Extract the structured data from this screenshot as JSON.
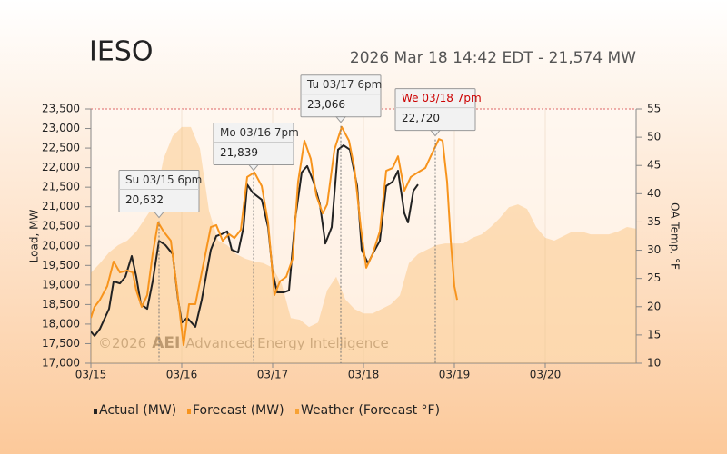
{
  "chart_data": {
    "type": "line",
    "title": "IESO",
    "subtitle": "2026 Mar 18 14:42 EDT - 21,574 MW",
    "ylabel": "Load, MW",
    "y2label": "OA Temp, °F",
    "watermark": {
      "copyright": "©2026",
      "logo": "AEI",
      "name": "Advanced Energy Intelligence"
    },
    "xlim": [
      0,
      6
    ],
    "xticks": [
      {
        "value": 0,
        "label": "03/15"
      },
      {
        "value": 1,
        "label": "03/16"
      },
      {
        "value": 2,
        "label": "03/17"
      },
      {
        "value": 3,
        "label": "03/18"
      },
      {
        "value": 4,
        "label": "03/19"
      },
      {
        "value": 5,
        "label": "03/20"
      }
    ],
    "ylim": [
      17000,
      23500
    ],
    "yticks": [
      {
        "value": 17000,
        "label": "17,000"
      },
      {
        "value": 17500,
        "label": "17,500"
      },
      {
        "value": 18000,
        "label": "18,000"
      },
      {
        "value": 18500,
        "label": "18,500"
      },
      {
        "value": 19000,
        "label": "19,000"
      },
      {
        "value": 19500,
        "label": "19,500"
      },
      {
        "value": 20000,
        "label": "20,000"
      },
      {
        "value": 20500,
        "label": "20,500"
      },
      {
        "value": 21000,
        "label": "21,000"
      },
      {
        "value": 21500,
        "label": "21,500"
      },
      {
        "value": 22000,
        "label": "22,000"
      },
      {
        "value": 22500,
        "label": "22,500"
      },
      {
        "value": 23000,
        "label": "23,000"
      },
      {
        "value": 23500,
        "label": "23,500"
      }
    ],
    "y2lim": [
      10,
      55
    ],
    "y2ticks": [
      10,
      15,
      20,
      25,
      30,
      35,
      40,
      45,
      50,
      55
    ],
    "series": [
      {
        "name": "Weather (Forecast °F)",
        "color": "#f7a234",
        "axis": "y2",
        "style": "area",
        "x": [
          0,
          0.1,
          0.2,
          0.3,
          0.4,
          0.5,
          0.6,
          0.7,
          0.8,
          0.9,
          1,
          1.1,
          1.2,
          1.3,
          1.4,
          1.5,
          1.6,
          1.7,
          1.8,
          1.9,
          2,
          2.1,
          2.2,
          2.3,
          2.4,
          2.5,
          2.6,
          2.7,
          2.8,
          2.9,
          3,
          3.1,
          3.2,
          3.3,
          3.4,
          3.5,
          3.6,
          3.7,
          3.8,
          3.9,
          4,
          4.1,
          4.2,
          4.3,
          4.4,
          4.5,
          4.6,
          4.7,
          4.8,
          4.9,
          5,
          5.1,
          5.2,
          5.3,
          5.4,
          5.5,
          5.6,
          5.7,
          5.8,
          5.9,
          6
        ],
        "values": [
          26,
          27.7,
          29.6,
          30.9,
          31.7,
          33.3,
          35.7,
          38.1,
          46.2,
          50.2,
          51.8,
          51.8,
          48,
          37,
          31.7,
          30.9,
          29.3,
          28.5,
          28,
          27.7,
          26.9,
          24,
          18,
          17.7,
          16.4,
          17.2,
          22.9,
          25.3,
          21.3,
          19.6,
          18.8,
          18.8,
          19.6,
          20.4,
          22,
          27.7,
          29.3,
          30.1,
          30.9,
          31.2,
          31.2,
          31.2,
          32.2,
          32.8,
          34.1,
          35.7,
          37.6,
          38.1,
          37.3,
          34.1,
          32.2,
          31.7,
          32.5,
          33.3,
          33.3,
          32.8,
          32.8,
          32.8,
          33.3,
          34.1,
          33.8
        ]
      },
      {
        "name": "Actual (MW)",
        "color": "#222222",
        "style": "line",
        "x": [
          0,
          0.04,
          0.1,
          0.2,
          0.25,
          0.32,
          0.38,
          0.45,
          0.5,
          0.55,
          0.62,
          0.68,
          0.75,
          0.82,
          0.9,
          0.96,
          1,
          1.06,
          1.15,
          1.22,
          1.32,
          1.38,
          1.44,
          1.5,
          1.55,
          1.62,
          1.68,
          1.72,
          1.78,
          1.88,
          1.95,
          2,
          2.05,
          2.12,
          2.18,
          2.25,
          2.32,
          2.38,
          2.45,
          2.52,
          2.58,
          2.65,
          2.72,
          2.78,
          2.85,
          2.93,
          2.98,
          3.05,
          3.1,
          3.18,
          3.25,
          3.32,
          3.38,
          3.45,
          3.49,
          3.55,
          3.6
        ],
        "values": [
          17810,
          17700,
          17880,
          18390,
          19090,
          19040,
          19210,
          19740,
          19210,
          18510,
          18390,
          19090,
          20130,
          20020,
          19790,
          18620,
          18040,
          18160,
          17930,
          18620,
          19900,
          20250,
          20300,
          20370,
          19900,
          19830,
          20480,
          21570,
          21360,
          21180,
          20480,
          19320,
          18810,
          18810,
          18860,
          20710,
          21880,
          22040,
          21640,
          21060,
          20060,
          20480,
          22460,
          22570,
          22460,
          21530,
          19900,
          19550,
          19790,
          20130,
          21530,
          21640,
          21920,
          20830,
          20600,
          21410,
          21570
        ]
      },
      {
        "name": "Forecast (MW)",
        "color": "#f7941d",
        "style": "line",
        "x": [
          0,
          0.04,
          0.1,
          0.18,
          0.25,
          0.32,
          0.4,
          0.46,
          0.5,
          0.56,
          0.62,
          0.68,
          0.74,
          0.8,
          0.88,
          0.95,
          1.02,
          1.08,
          1.15,
          1.22,
          1.32,
          1.38,
          1.45,
          1.52,
          1.58,
          1.65,
          1.72,
          1.8,
          1.88,
          1.95,
          2.02,
          2.08,
          2.15,
          2.22,
          2.28,
          2.35,
          2.42,
          2.48,
          2.55,
          2.6,
          2.68,
          2.76,
          2.84,
          2.9,
          2.97,
          3.03,
          3.1,
          3.18,
          3.25,
          3.32,
          3.38,
          3.45,
          3.52,
          3.6,
          3.68,
          3.75,
          3.83,
          3.87,
          3.92,
          3.96,
          4,
          4.03
        ],
        "values": [
          18160,
          18440,
          18620,
          18970,
          19600,
          19320,
          19370,
          19320,
          18860,
          18440,
          18740,
          19790,
          20600,
          20370,
          20130,
          18860,
          17460,
          18510,
          18510,
          19320,
          20480,
          20530,
          20130,
          20300,
          20200,
          20410,
          21760,
          21880,
          21530,
          20600,
          18740,
          19090,
          19210,
          19670,
          21640,
          22690,
          22220,
          21290,
          20830,
          21060,
          22460,
          23040,
          22690,
          21990,
          20480,
          19440,
          19790,
          20370,
          21920,
          21990,
          22290,
          21410,
          21760,
          21880,
          21990,
          22340,
          22730,
          22690,
          21640,
          20130,
          18970,
          18620
        ]
      }
    ],
    "annotations": [
      {
        "label": "Su 03/15 6pm",
        "x": 0.75,
        "value": 20632,
        "value_label": "20,632",
        "color": "#333333"
      },
      {
        "label": "Mo 03/16 7pm",
        "x": 1.79,
        "value": 21839,
        "value_label": "21,839",
        "color": "#333333"
      },
      {
        "label": "Tu 03/17 6pm",
        "x": 2.75,
        "value": 23066,
        "value_label": "23,066",
        "color": "#333333"
      },
      {
        "label": "We 03/18 7pm",
        "x": 3.79,
        "value": 22720,
        "value_label": "22,720",
        "color": "#cc0000"
      }
    ]
  }
}
